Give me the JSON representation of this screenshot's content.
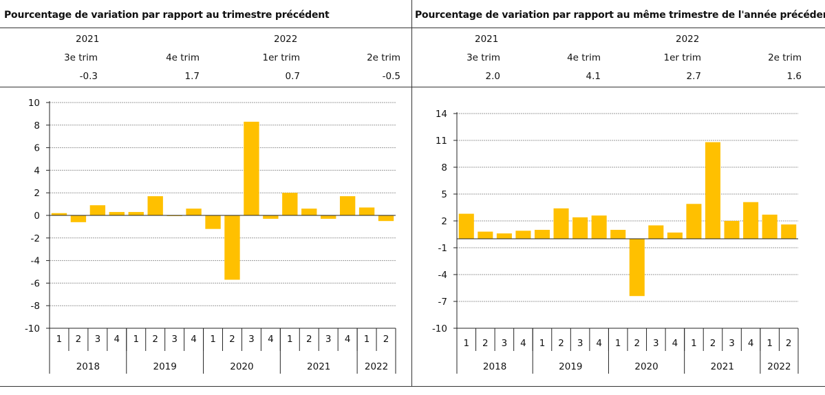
{
  "colors": {
    "bar": "#FFC000",
    "grid": "#9a9a9a",
    "axis": "#222222"
  },
  "panels": [
    {
      "title": "Pourcentage de variation par rapport au trimestre précédent",
      "header": {
        "years": [
          "2021",
          "2022"
        ],
        "quarters": [
          "3e trim",
          "4e trim",
          "1er trim",
          "2e trim"
        ],
        "values": [
          "-0.3",
          "1.7",
          "0.7",
          "-0.5"
        ]
      }
    },
    {
      "title": "Pourcentage de variation par rapport au même trimestre de l'année précédente",
      "header": {
        "years": [
          "2021",
          "2022"
        ],
        "quarters": [
          "3e trim",
          "4e trim",
          "1er trim",
          "2e trim"
        ],
        "values": [
          "2.0",
          "4.1",
          "2.7",
          "1.6"
        ]
      }
    }
  ],
  "chart_data": [
    {
      "type": "bar",
      "categories": [
        "1",
        "2",
        "3",
        "4",
        "1",
        "2",
        "3",
        "4",
        "1",
        "2",
        "3",
        "4",
        "1",
        "2",
        "3",
        "4",
        "1",
        "2"
      ],
      "groups": [
        {
          "label": "2018",
          "count": 4
        },
        {
          "label": "2019",
          "count": 4
        },
        {
          "label": "2020",
          "count": 4
        },
        {
          "label": "2021",
          "count": 4
        },
        {
          "label": "2022",
          "count": 2
        }
      ],
      "values": [
        0.2,
        -0.6,
        0.9,
        0.3,
        0.3,
        1.7,
        0.0,
        0.6,
        -1.2,
        -5.7,
        8.3,
        -0.3,
        2.0,
        0.6,
        -0.3,
        1.7,
        0.7,
        -0.5
      ],
      "yticks": [
        10,
        8,
        6,
        4,
        2,
        0,
        -2,
        -4,
        -6,
        -8,
        -10
      ],
      "ylim": [
        -10,
        10
      ],
      "grid": true
    },
    {
      "type": "bar",
      "categories": [
        "1",
        "2",
        "3",
        "4",
        "1",
        "2",
        "3",
        "4",
        "1",
        "2",
        "3",
        "4",
        "1",
        "2",
        "3",
        "4",
        "1",
        "2"
      ],
      "groups": [
        {
          "label": "2018",
          "count": 4
        },
        {
          "label": "2019",
          "count": 4
        },
        {
          "label": "2020",
          "count": 4
        },
        {
          "label": "2021",
          "count": 4
        },
        {
          "label": "2022",
          "count": 2
        }
      ],
      "values": [
        2.8,
        0.8,
        0.6,
        0.9,
        1.0,
        3.4,
        2.4,
        2.6,
        1.0,
        -6.4,
        1.5,
        0.7,
        3.9,
        10.8,
        2.0,
        4.1,
        2.7,
        1.6
      ],
      "yticks": [
        14,
        11,
        8,
        5,
        2,
        -1,
        -4,
        -7,
        -10
      ],
      "ylim": [
        -10,
        14
      ],
      "grid": true
    }
  ]
}
